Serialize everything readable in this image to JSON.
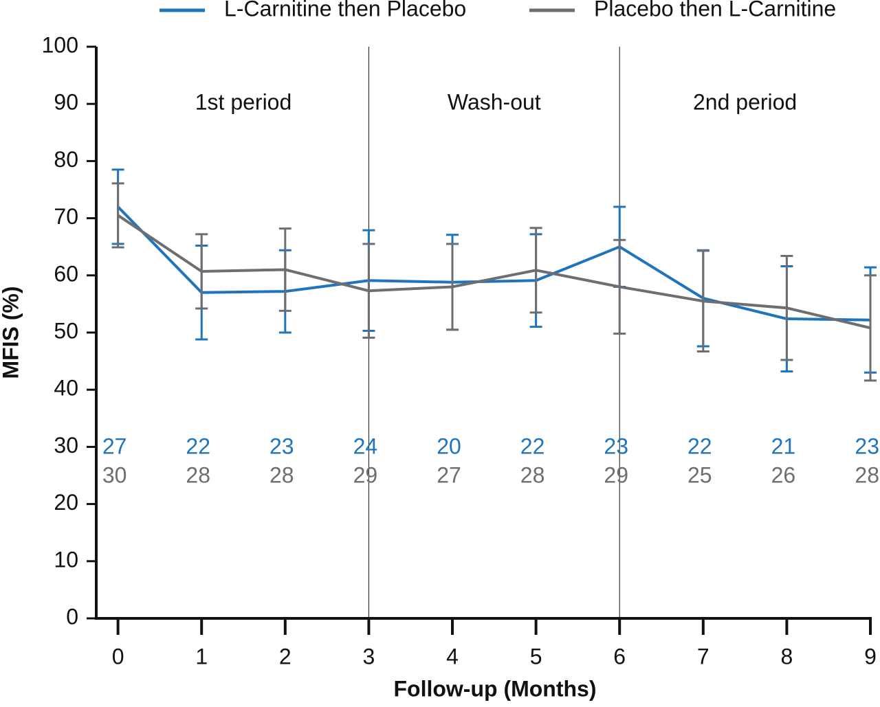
{
  "chart_data": {
    "type": "line",
    "x_label": "Follow-up (Months)",
    "y_label": "MFIS (%)",
    "x": [
      0,
      1,
      2,
      3,
      4,
      5,
      6,
      7,
      8,
      9
    ],
    "xlim": [
      -0.26,
      9
    ],
    "xticks": [
      0,
      1,
      2,
      3,
      4,
      5,
      6,
      7,
      8,
      9
    ],
    "ylim": [
      0,
      100
    ],
    "yticks": [
      0,
      10,
      20,
      30,
      40,
      50,
      60,
      70,
      80,
      90,
      100
    ],
    "vlines": [
      3,
      6
    ],
    "annotations": [
      "1st period",
      "Wash-out",
      "2nd period"
    ],
    "legend": "top",
    "series": [
      {
        "name": "L-Carnitine then Placebo",
        "color": "#1f74bd",
        "values": [
          72,
          57,
          57.2,
          59.1,
          58.8,
          59.1,
          65,
          56,
          52.4,
          52.2
        ],
        "errors": [
          6.5,
          8.2,
          7.2,
          8.8,
          8.3,
          8.1,
          7,
          8.4,
          9.2,
          9.2
        ],
        "n": [
          27,
          22,
          23,
          24,
          20,
          22,
          23,
          22,
          21,
          23
        ]
      },
      {
        "name": "Placebo then L-Carnitine",
        "color": "#6d6e71",
        "values": [
          70.5,
          60.7,
          61,
          57.3,
          58,
          60.9,
          58,
          55.5,
          54.3,
          50.8
        ],
        "errors": [
          5.6,
          6.5,
          7.2,
          8.2,
          7.5,
          7.4,
          8.2,
          8.8,
          9.1,
          9.2
        ],
        "n": [
          30,
          28,
          28,
          29,
          27,
          28,
          29,
          25,
          26,
          28
        ]
      }
    ]
  }
}
